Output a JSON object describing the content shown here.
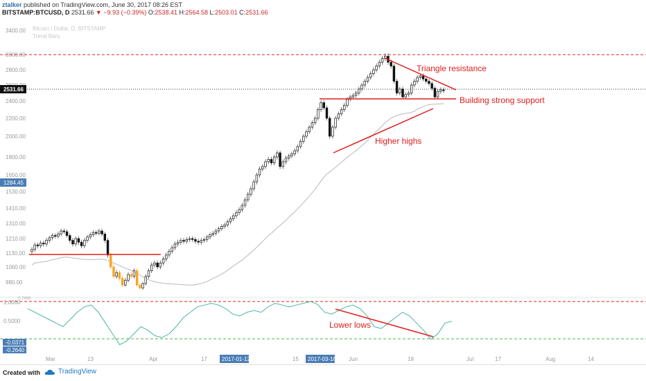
{
  "header": {
    "author": "ztalker",
    "published": "published on TradingView.com, June 30, 2017 08:26 EST",
    "symbol": "BITSTAMP:BTCUSD, D",
    "last": "2531.66",
    "change": "−9.93 (−0.39%)",
    "open_label": "O:",
    "open": "2538.41",
    "high_label": "H:",
    "high": "2564.58",
    "low_label": "L:",
    "low": "2503.01",
    "close_label": "C:",
    "close": "2531.66"
  },
  "watermark": {
    "line1": "Bitcoin / Dollar, D, BITSTAMP",
    "line2": "Trend Bars"
  },
  "footer": {
    "created_with": "Created with",
    "brand": "TradingView"
  },
  "colors": {
    "annotation": "#e01c1c",
    "bear_candle": "#111111",
    "bull_candle": "#ffffff",
    "highlight_candle": "#f5a623",
    "moving_average": "#b8b8b8",
    "oscillator": "#4bb3a4",
    "label_bg": "#4a7db5",
    "price_label_bg": "#111111"
  },
  "annotations": {
    "triangle_resistance": "Triangle resistance",
    "building_support": "Building strong support",
    "higher_highs": "Higher highs",
    "lower_lows": "Lower lows"
  },
  "price_axis_labels": [
    "3400.00",
    "3000.00",
    "2800.00",
    "2600.00",
    "2400.00",
    "2200.00",
    "2000.00",
    "1800.00",
    "1650.00",
    "1530.00",
    "1410.00",
    "1310.00",
    "1210.00",
    "1130.00",
    "1060.00",
    "980.00"
  ],
  "price_markers": {
    "current": "2531.66",
    "secondary": "1284.45"
  },
  "osc_axis_labels": [
    "1.0000",
    "0.5000"
  ],
  "osc_markers": {
    "a": "-0.0371",
    "b": "-0.2640",
    "level_label": "0.7458"
  },
  "time_axis": {
    "labels": [
      "Mar",
      "13",
      "Apr",
      "17",
      "15",
      "Jun",
      "19",
      "Jul",
      "17",
      "Aug",
      "14"
    ],
    "highlight_dates": [
      "2017-01-12",
      "2017-03-18"
    ]
  },
  "chart_data": {
    "type": "candlestick",
    "symbol": "BITSTAMP:BTCUSD",
    "interval": "D",
    "last_bar": {
      "open": 2538.41,
      "high": 2564.58,
      "low": 2503.01,
      "close": 2531.66,
      "change": -9.93,
      "change_pct": -0.39
    },
    "horizontal_levels": [
      3000,
      2531.66
    ],
    "support_line": 2420,
    "breakout_line": 1110,
    "oscillator_levels": [
      1.0,
      -0.0371,
      -0.264
    ],
    "annotations": [
      "Triangle resistance",
      "Building strong support",
      "Higher highs",
      "Lower lows"
    ],
    "grid": false
  }
}
